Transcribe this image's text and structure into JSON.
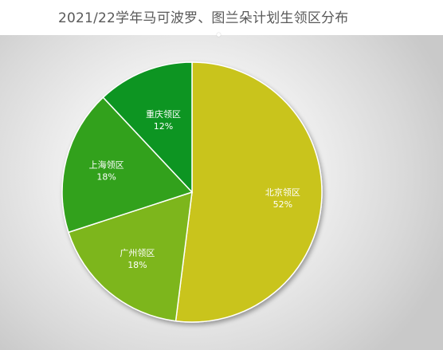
{
  "chart_data": {
    "type": "pie",
    "title": "2021/22学年马可波罗、图兰朵计划生领区分布",
    "slices": [
      {
        "label": "北京领区",
        "value": 52,
        "value_label": "52%",
        "color": "#C9C41A"
      },
      {
        "label": "广州领区",
        "value": 18,
        "value_label": "18%",
        "color": "#7DB61C"
      },
      {
        "label": "上海领区",
        "value": 18,
        "value_label": "18%",
        "color": "#33A11A"
      },
      {
        "label": "重庆领区",
        "value": 12,
        "value_label": "12%",
        "color": "#0F9520"
      }
    ],
    "start": "12 o'clock",
    "direction": "clockwise",
    "legend": "none",
    "labels": "inside slices"
  }
}
